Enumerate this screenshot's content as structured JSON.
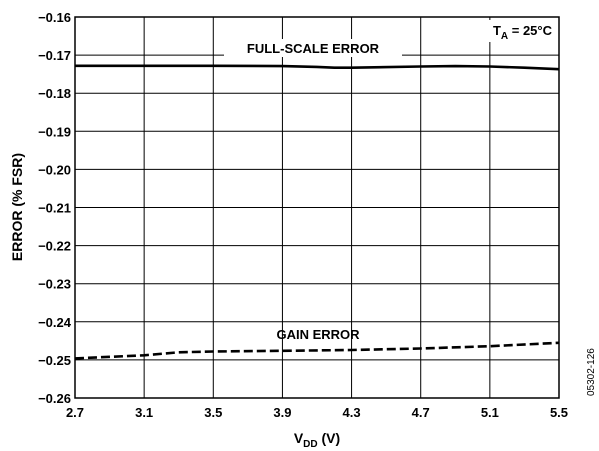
{
  "chart_data": {
    "type": "line",
    "title": "",
    "xlabel": "V",
    "xlabel_sub": "DD",
    "xlabel_unit": " (V)",
    "ylabel": "ERROR (% FSR)",
    "xlim": [
      2.7,
      5.5
    ],
    "ylim": [
      -0.26,
      -0.16
    ],
    "x_ticks": [
      "2.7",
      "3.1",
      "3.5",
      "3.9",
      "4.3",
      "4.7",
      "5.1",
      "5.5"
    ],
    "y_ticks": [
      "−0.16",
      "−0.17",
      "−0.18",
      "−0.19",
      "−0.20",
      "−0.21",
      "−0.22",
      "−0.23",
      "−0.24",
      "−0.25",
      "−0.26"
    ],
    "grid": true,
    "series": [
      {
        "name": "FULL-SCALE ERROR",
        "style": "solid",
        "x": [
          2.7,
          3.1,
          3.5,
          3.9,
          4.1,
          4.2,
          4.3,
          4.7,
          4.9,
          5.1,
          5.3,
          5.5
        ],
        "y": [
          -0.1728,
          -0.1728,
          -0.1728,
          -0.1729,
          -0.1731,
          -0.1733,
          -0.1733,
          -0.173,
          -0.1729,
          -0.173,
          -0.1733,
          -0.1737
        ]
      },
      {
        "name": "GAIN ERROR",
        "style": "dashed",
        "x": [
          2.7,
          3.1,
          3.3,
          3.5,
          3.9,
          4.3,
          4.7,
          5.1,
          5.5
        ],
        "y": [
          -0.2496,
          -0.2488,
          -0.248,
          -0.2478,
          -0.2476,
          -0.2474,
          -0.247,
          -0.2464,
          -0.2455
        ]
      }
    ],
    "annotations": {
      "temp_prefix": "T",
      "temp_sub": "A",
      "temp_suffix": " = 25°C"
    },
    "figure_id": "05302-126"
  }
}
